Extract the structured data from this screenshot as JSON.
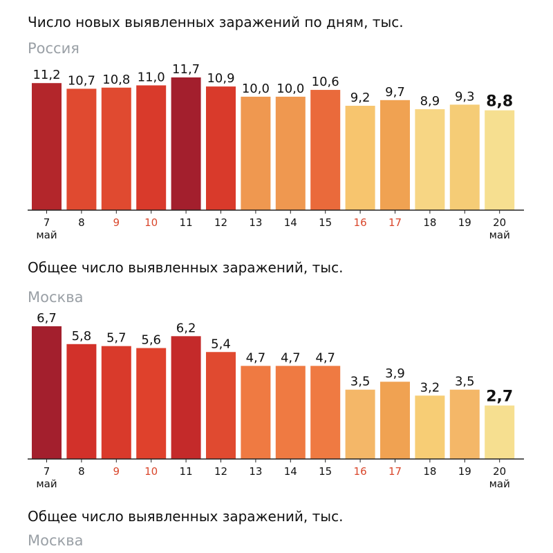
{
  "sections": [
    {
      "title": "Число новых выявленных заражений по дням, тыс.",
      "subtitle": "Россия"
    },
    {
      "title": "Общее число выявленных заражений, тыс.",
      "subtitle": "Москва"
    },
    {
      "title": "Общее число выявленных заражений, тыс.",
      "subtitle": "Москва"
    }
  ],
  "colors": {
    "weekday_tick": "#111111",
    "weekend_tick": "#d9462b",
    "axis": "#222222"
  },
  "chart_data": [
    {
      "type": "bar",
      "title": "Число новых выявленных заражений по дням, тыс.",
      "subtitle": "Россия",
      "categories": [
        "7",
        "8",
        "9",
        "10",
        "11",
        "12",
        "13",
        "14",
        "15",
        "16",
        "17",
        "18",
        "19",
        "20"
      ],
      "category_sublabels": {
        "0": "май",
        "13": "май"
      },
      "weekend_categories": [
        "9",
        "10",
        "16",
        "17"
      ],
      "values": [
        11.2,
        10.7,
        10.8,
        11.0,
        11.7,
        10.9,
        10.0,
        10.0,
        10.6,
        9.2,
        9.7,
        8.9,
        9.3,
        8.8
      ],
      "value_labels": [
        "11,2",
        "10,7",
        "10,8",
        "11,0",
        "11,7",
        "10,9",
        "10,0",
        "10,0",
        "10,6",
        "9,2",
        "9,7",
        "8,9",
        "9,3",
        "8,8"
      ],
      "highlight_last": true,
      "bar_colors": [
        "#b3262b",
        "#e04a30",
        "#e04a30",
        "#d93a2b",
        "#a31f2d",
        "#d93a2b",
        "#ef9850",
        "#ef9850",
        "#ea6a3b",
        "#f7c56e",
        "#f0a252",
        "#f7d684",
        "#f5cc76",
        "#f6df90"
      ],
      "ylim": [
        0,
        11.7
      ],
      "grid": false,
      "legend": "none"
    },
    {
      "type": "bar",
      "title": "Общее число выявленных заражений, тыс.",
      "subtitle": "Москва",
      "categories": [
        "7",
        "8",
        "9",
        "10",
        "11",
        "12",
        "13",
        "14",
        "15",
        "16",
        "17",
        "18",
        "19",
        "20"
      ],
      "category_sublabels": {
        "0": "май",
        "13": "май"
      },
      "weekend_categories": [
        "9",
        "10",
        "16",
        "17"
      ],
      "values": [
        6.7,
        5.8,
        5.7,
        5.6,
        6.2,
        5.4,
        4.7,
        4.7,
        4.7,
        3.5,
        3.9,
        3.2,
        3.5,
        2.7
      ],
      "value_labels": [
        "6,7",
        "5,8",
        "5,7",
        "5,6",
        "6,2",
        "5,4",
        "4,7",
        "4,7",
        "4,7",
        "3,5",
        "3,9",
        "3,2",
        "3,5",
        "2,7"
      ],
      "highlight_last": true,
      "bar_colors": [
        "#a31f2d",
        "#d2312a",
        "#d93a2b",
        "#df412c",
        "#c42a2a",
        "#e04a30",
        "#ef7a42",
        "#ef7a42",
        "#ef7a42",
        "#f4b768",
        "#f0a252",
        "#f7cd75",
        "#f4b768",
        "#f6df90"
      ],
      "ylim": [
        0,
        6.7
      ],
      "grid": false,
      "legend": "none"
    }
  ]
}
